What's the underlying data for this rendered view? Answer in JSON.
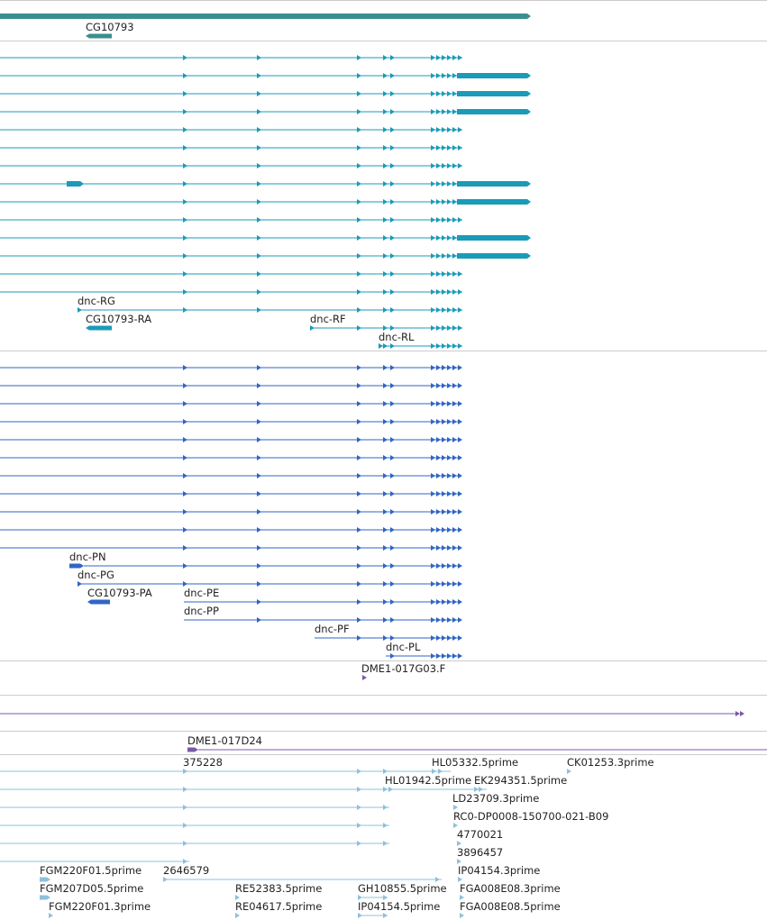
{
  "colors": {
    "gene": "#3a8f8f",
    "transcript_teal": "#1a9bb8",
    "transcript_blue": "#2f66c4",
    "clone": "#7b5aa8",
    "est": "#8ec0dd",
    "separator": "#cccccc"
  },
  "genes": [
    {
      "id": "CG10793",
      "label": "CG10793"
    }
  ],
  "transcript_labels_teal": [
    "dnc-RG",
    "CG10793-RA",
    "dnc-RF",
    "dnc-RL"
  ],
  "transcript_labels_blue": [
    "dnc-PN",
    "dnc-PG",
    "CG10793-PA",
    "dnc-PE",
    "dnc-PP",
    "dnc-PF",
    "dnc-PL"
  ],
  "clone_labels": [
    "DME1-017G03.F",
    "DME1-017D24"
  ],
  "est_labels": [
    "375228",
    "HL05332.5prime",
    "CK01253.3prime",
    "HL01942.5prime",
    "EK294351.5prime",
    "LD23709.3prime",
    "RC0-DP0008-150700-021-B09",
    "4770021",
    "3896457",
    "FGM220F01.5prime",
    "2646579",
    "IP04154.3prime",
    "FGM207D05.5prime",
    "RE52383.5prime",
    "GH10855.5prime",
    "FGA008E08.3prime",
    "FGM220F01.3prime",
    "RE04617.5prime",
    "IP04154.5prime",
    "FGA008E08.5prime"
  ]
}
